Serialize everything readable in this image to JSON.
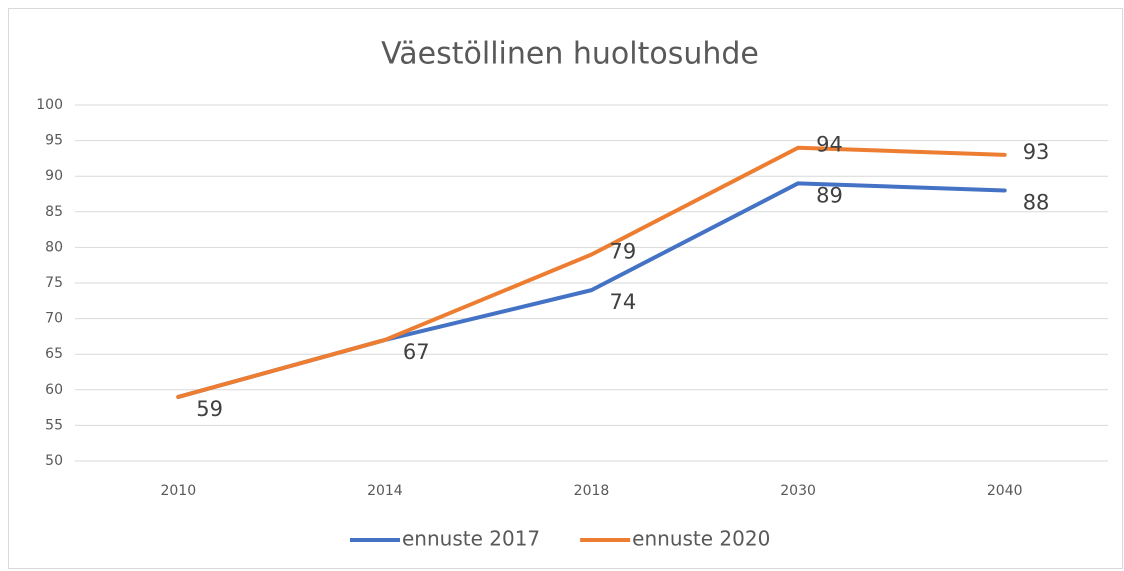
{
  "chart_data": {
    "type": "line",
    "title": "Väestöllinen huoltosuhde",
    "categories": [
      "2010",
      "2014",
      "2018",
      "2030",
      "2040"
    ],
    "series": [
      {
        "name": "ennuste 2017",
        "color": "#4472c4",
        "values": [
          59,
          67,
          74,
          89,
          88
        ],
        "value_labels": [
          "59",
          "67",
          "74",
          "89",
          "88"
        ]
      },
      {
        "name": "ennuste 2020",
        "color": "#ed7d31",
        "values": [
          59,
          67,
          79,
          94,
          93
        ],
        "value_labels": [
          null,
          null,
          "79",
          "94",
          "93"
        ]
      }
    ],
    "ylim": [
      50,
      100
    ],
    "yticks": [
      50,
      55,
      60,
      65,
      70,
      75,
      80,
      85,
      90,
      95,
      100
    ],
    "grid": true,
    "legend": "bottom"
  }
}
